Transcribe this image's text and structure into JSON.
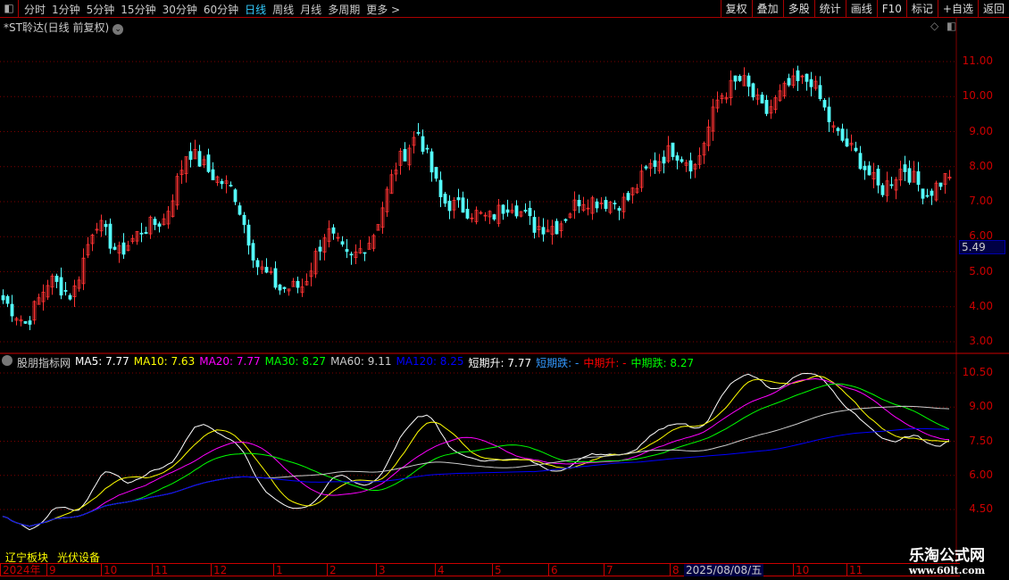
{
  "toolbar": {
    "periods": [
      "分时",
      "1分钟",
      "5分钟",
      "15分钟",
      "30分钟",
      "60分钟",
      "日线",
      "周线",
      "月线",
      "多周期",
      "更多 >"
    ],
    "active": "日线",
    "right_buttons": [
      "复权",
      "叠加",
      "多股",
      "统计",
      "画线",
      "F10",
      "标记",
      "+自选",
      "返回"
    ]
  },
  "stock": {
    "title": "*ST聆达(日线 前复权)"
  },
  "price_axis": {
    "labels": [
      "11.00",
      "10.00",
      "9.00",
      "8.00",
      "7.00",
      "6.00",
      "5.00",
      "4.00",
      "3.00"
    ],
    "current": "5.49"
  },
  "indicator": {
    "name": "股朋指标网",
    "items": [
      {
        "label": "MA5: 7.77",
        "color": "#ffffff"
      },
      {
        "label": "MA10: 7.63",
        "color": "#ffff00"
      },
      {
        "label": "MA20: 7.77",
        "color": "#ff00ff"
      },
      {
        "label": "MA30: 8.27",
        "color": "#00ff00"
      },
      {
        "label": "MA60: 9.11",
        "color": "#cccccc"
      },
      {
        "label": "MA120: 8.25",
        "color": "#0000ff"
      },
      {
        "label": "短期升: 7.77",
        "color": "#ffffff"
      },
      {
        "label": "短期跌: -",
        "color": "#3399ff"
      },
      {
        "label": "中期升: -",
        "color": "#ff0000"
      },
      {
        "label": "中期跌: 8.27",
        "color": "#00ff00"
      }
    ],
    "axis": [
      "10.50",
      "9.00",
      "7.50",
      "6.00",
      "4.50"
    ]
  },
  "tags": [
    "辽宁板块",
    "光伏设备"
  ],
  "xaxis": {
    "labels": [
      "2024年",
      "9",
      "10",
      "11",
      "12",
      "1",
      "2",
      "3",
      "4",
      "5",
      "6",
      "7",
      "8",
      "10",
      "11"
    ],
    "cursor_date": "2025/08/08/五"
  },
  "watermark": {
    "name": "乐淘公式网",
    "url": "www.60lt.com"
  },
  "colors": {
    "up": "#ff3232",
    "down": "#54ffff",
    "grid": "#800000"
  },
  "chart_data": {
    "type": "candlestick",
    "approx_close_path": [
      4.2,
      3.5,
      4.8,
      4.3,
      6.5,
      5.5,
      6.2,
      6.5,
      8.5,
      7.8,
      7.3,
      5.2,
      4.5,
      4.6,
      6.2,
      5.3,
      6.0,
      8.0,
      9.0,
      7.0,
      6.8,
      6.5,
      7.0,
      6.3,
      6.3,
      7.1,
      7.0,
      7.0,
      8.0,
      8.5,
      8.0,
      10.0,
      10.5,
      9.5,
      10.3,
      10.5,
      9.0,
      8.3,
      7.3,
      8.0,
      7.2,
      7.8
    ],
    "ylim": [
      3,
      11.5
    ]
  }
}
